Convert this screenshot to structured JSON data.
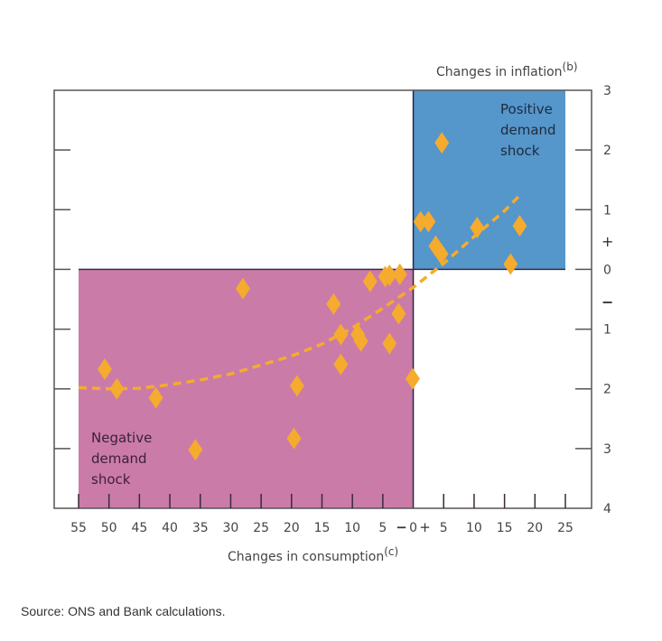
{
  "chart_data": {
    "type": "scatter",
    "title": "",
    "xlabel": "Changes in consumption",
    "xlabel_superscript": "(c)",
    "ylabel": "Changes in inflation",
    "ylabel_superscript": "(b)",
    "xlim": [
      -55,
      25
    ],
    "ylim": [
      -4,
      3
    ],
    "x_ticks": [
      -55,
      -50,
      -45,
      -40,
      -35,
      -30,
      -25,
      -20,
      -15,
      -10,
      -5,
      0,
      5,
      10,
      15,
      20,
      25
    ],
    "x_tick_labels": [
      "55",
      "50",
      "45",
      "40",
      "35",
      "30",
      "25",
      "20",
      "15",
      "10",
      "5",
      "0",
      "5",
      "10",
      "15",
      "20",
      "25"
    ],
    "x_sign_minus": "−",
    "x_sign_plus": "+",
    "y_ticks": [
      3,
      2,
      1,
      0,
      -1,
      -2,
      -3,
      -4
    ],
    "y_tick_labels": [
      "3",
      "2",
      "1",
      "0",
      "1",
      "2",
      "3",
      "4"
    ],
    "y_sign_plus": "+",
    "y_sign_minus": "−",
    "regions": [
      {
        "name": "Positive demand shock",
        "label_lines": [
          "Positive",
          "demand",
          "shock"
        ],
        "x": [
          0,
          25
        ],
        "y": [
          0,
          3
        ],
        "color": "#5596cb"
      },
      {
        "name": "Negative demand shock",
        "label_lines": [
          "Negative",
          "demand",
          "shock"
        ],
        "x": [
          -55,
          0
        ],
        "y": [
          -4,
          0
        ],
        "color": "#cb7ba8"
      }
    ],
    "series": [
      {
        "name": "observations",
        "marker": "diamond",
        "color": "#f5ab2e",
        "points": [
          [
            4.7,
            2.12
          ],
          [
            1.2,
            0.8
          ],
          [
            2.5,
            0.8
          ],
          [
            10.5,
            0.7
          ],
          [
            3.7,
            0.39
          ],
          [
            4.6,
            0.26
          ],
          [
            17.5,
            0.73
          ],
          [
            16.0,
            0.09
          ],
          [
            -7.1,
            -0.2
          ],
          [
            -4.6,
            -0.12
          ],
          [
            -3.9,
            -0.1
          ],
          [
            -2.2,
            -0.08
          ],
          [
            -13.1,
            -0.58
          ],
          [
            -2.4,
            -0.74
          ],
          [
            -11.9,
            -1.09
          ],
          [
            -9.1,
            -1.09
          ],
          [
            -8.6,
            -1.2
          ],
          [
            -3.9,
            -1.24
          ],
          [
            -11.9,
            -1.59
          ],
          [
            -0.1,
            -1.83
          ],
          [
            -28.0,
            -0.32
          ],
          [
            -50.7,
            -1.67
          ],
          [
            -48.7,
            -2.0
          ],
          [
            -42.3,
            -2.15
          ],
          [
            -19.1,
            -1.95
          ],
          [
            -19.6,
            -2.83
          ],
          [
            -35.8,
            -3.02
          ]
        ]
      },
      {
        "name": "fitted curve",
        "style": "dashed",
        "color": "#f5ab2e",
        "points": [
          [
            -55,
            -1.98
          ],
          [
            -50,
            -2.0
          ],
          [
            -45,
            -1.99
          ],
          [
            -40,
            -1.93
          ],
          [
            -35,
            -1.85
          ],
          [
            -30,
            -1.75
          ],
          [
            -25,
            -1.6
          ],
          [
            -20,
            -1.45
          ],
          [
            -15,
            -1.25
          ],
          [
            -10,
            -0.98
          ],
          [
            -5,
            -0.65
          ],
          [
            0,
            -0.3
          ],
          [
            5,
            0.1
          ],
          [
            10,
            0.55
          ],
          [
            15,
            0.98
          ],
          [
            17.7,
            1.26
          ]
        ]
      }
    ],
    "grid": false,
    "legend": "none"
  },
  "source": "Source: ONS and Bank calculations."
}
